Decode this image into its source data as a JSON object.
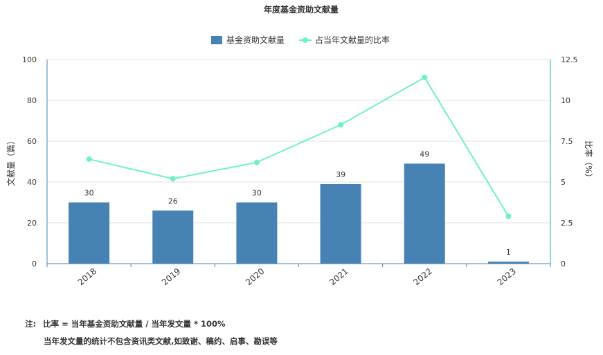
{
  "chart_data": {
    "type": "bar",
    "title": "年度基金资助文献量",
    "categories": [
      "2018",
      "2019",
      "2020",
      "2021",
      "2022",
      "2023"
    ],
    "series": [
      {
        "name": "基金资助文献量",
        "type": "bar",
        "axis": "left",
        "color": "#4682B4",
        "values": [
          30,
          26,
          30,
          39,
          49,
          1
        ],
        "data_labels": [
          "30",
          "26",
          "30",
          "39",
          "49",
          "1"
        ]
      },
      {
        "name": "占当年文献量的比率",
        "type": "line",
        "axis": "right",
        "color": "#6EF0C8",
        "values": [
          6.4,
          5.2,
          6.2,
          8.5,
          11.4,
          2.9
        ]
      }
    ],
    "ylabel": "文献量（篇）",
    "y2label": "比率（%）",
    "ylim": [
      0,
      100
    ],
    "y2lim": [
      0,
      12.5
    ],
    "yticks": [
      "0",
      "20",
      "40",
      "60",
      "80",
      "100"
    ],
    "y2ticks": [
      "0",
      "2.5",
      "5",
      "7.5",
      "10",
      "12.5"
    ],
    "grid": true,
    "legend": "top-center",
    "colors": {
      "bar": "#4682B4",
      "line": "#6EF0C8",
      "axis_left": "#4682B4",
      "axis_right": "#20B2AA",
      "grid": "#E0E0E0",
      "text": "#333333"
    }
  },
  "notes": {
    "label": "注:",
    "line1": "比率 = 当年基金资助文献量 / 当年发文量 * 100%",
    "line2": "当年发文量的统计不包含资讯类文献,如致谢、稿约、启事、勘误等"
  }
}
